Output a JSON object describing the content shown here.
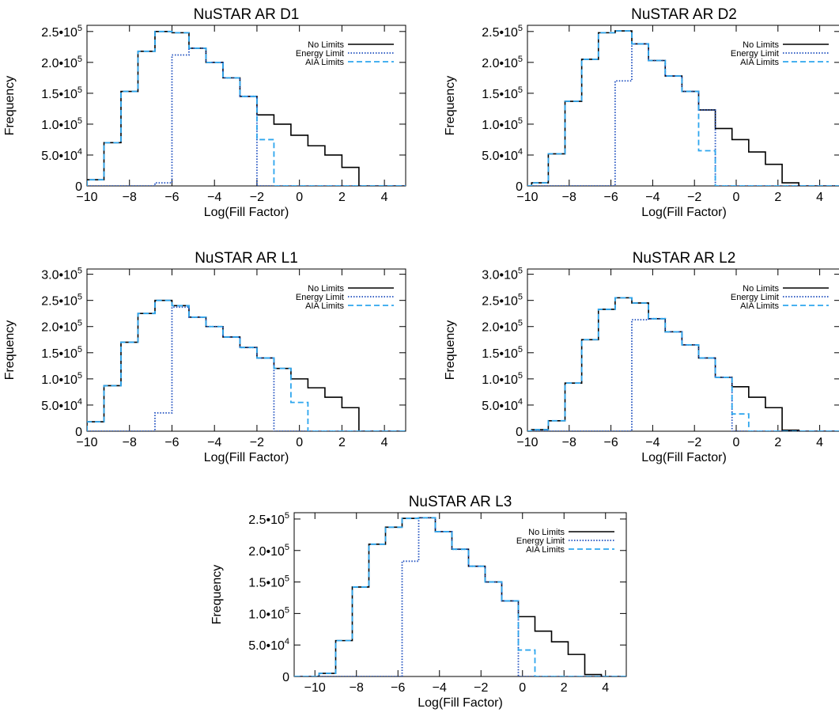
{
  "figure": {
    "legend_labels": [
      "No Limits",
      "Energy Limit",
      "AIA Limits"
    ]
  },
  "chart_data": [
    {
      "type": "histogram",
      "title": "NuSTAR AR D1",
      "xlabel": "Log(Fill Factor)",
      "ylabel": "Frequency",
      "xlim": [
        -10,
        5
      ],
      "ylim": [
        0,
        260000
      ],
      "xticks": [
        -10,
        -8,
        -6,
        -4,
        -2,
        0,
        2,
        4
      ],
      "yticks": [
        0,
        50000,
        100000,
        150000,
        200000,
        250000
      ],
      "ytick_labels": [
        {
          "m": "0",
          "e": ""
        },
        {
          "m": "5.0•10",
          "e": "4"
        },
        {
          "m": "1.0•10",
          "e": "5"
        },
        {
          "m": "1.5•10",
          "e": "5"
        },
        {
          "m": "2.0•10",
          "e": "5"
        },
        {
          "m": "2.5•10",
          "e": "5"
        }
      ],
      "legend_position": "top-right",
      "bin_edges": [
        -10,
        -9.2,
        -8.4,
        -7.6,
        -6.8,
        -6,
        -5.2,
        -4.4,
        -3.6,
        -2.8,
        -2,
        -1.2,
        -0.4,
        0.4,
        1.2,
        2,
        2.8,
        3.6,
        4.4
      ],
      "series": [
        {
          "name": "No Limits",
          "color": "#000000",
          "dash": "solid",
          "values": [
            10000,
            70000,
            153000,
            218000,
            250000,
            248000,
            223000,
            200000,
            175000,
            145000,
            115000,
            100000,
            82000,
            65000,
            50000,
            30000,
            0,
            0
          ]
        },
        {
          "name": "Energy Limit",
          "color": "#1f4fbf",
          "dash": "dotted",
          "values": [
            0,
            0,
            0,
            0,
            5000,
            212000,
            223000,
            200000,
            175000,
            145000,
            0,
            0,
            0,
            0,
            0,
            0,
            0,
            0
          ]
        },
        {
          "name": "AIA Limits",
          "color": "#2ea6ee",
          "dash": "dashed",
          "values": [
            10000,
            70000,
            153000,
            218000,
            250000,
            248000,
            223000,
            200000,
            175000,
            145000,
            75000,
            0,
            0,
            0,
            0,
            0,
            0,
            0
          ]
        }
      ]
    },
    {
      "type": "histogram",
      "title": "NuSTAR AR D2",
      "xlabel": "Log(Fill Factor)",
      "ylabel": "Frequency",
      "xlim": [
        -10,
        5
      ],
      "ylim": [
        0,
        260000
      ],
      "xticks": [
        -10,
        -8,
        -6,
        -4,
        -2,
        0,
        2,
        4
      ],
      "yticks": [
        0,
        50000,
        100000,
        150000,
        200000,
        250000
      ],
      "ytick_labels": [
        {
          "m": "0",
          "e": ""
        },
        {
          "m": "5.0•10",
          "e": "4"
        },
        {
          "m": "1.0•10",
          "e": "5"
        },
        {
          "m": "1.5•10",
          "e": "5"
        },
        {
          "m": "2.0•10",
          "e": "5"
        },
        {
          "m": "2.5•10",
          "e": "5"
        }
      ],
      "legend_position": "top-right",
      "bin_edges": [
        -9.8,
        -9,
        -8.2,
        -7.4,
        -6.6,
        -5.8,
        -5,
        -4.2,
        -3.4,
        -2.6,
        -1.8,
        -1,
        -0.2,
        0.6,
        1.4,
        2.2,
        3,
        3.8,
        4.6
      ],
      "series": [
        {
          "name": "No Limits",
          "color": "#000000",
          "dash": "solid",
          "values": [
            5000,
            52000,
            137000,
            205000,
            248000,
            251000,
            230000,
            203000,
            178000,
            153000,
            123000,
            93000,
            75000,
            55000,
            35000,
            5000,
            0,
            0
          ]
        },
        {
          "name": "Energy Limit",
          "color": "#1f4fbf",
          "dash": "dotted",
          "values": [
            0,
            0,
            0,
            0,
            0,
            170000,
            230000,
            203000,
            178000,
            153000,
            123000,
            0,
            0,
            0,
            0,
            0,
            0,
            0
          ]
        },
        {
          "name": "AIA Limits",
          "color": "#2ea6ee",
          "dash": "dashed",
          "values": [
            5000,
            52000,
            137000,
            205000,
            248000,
            251000,
            230000,
            203000,
            178000,
            153000,
            57000,
            0,
            0,
            0,
            0,
            0,
            0,
            0
          ]
        }
      ]
    },
    {
      "type": "histogram",
      "title": "NuSTAR AR L1",
      "xlabel": "Log(Fill Factor)",
      "ylabel": "Frequency",
      "xlim": [
        -10,
        5
      ],
      "ylim": [
        0,
        310000
      ],
      "xticks": [
        -10,
        -8,
        -6,
        -4,
        -2,
        0,
        2,
        4
      ],
      "yticks": [
        0,
        50000,
        100000,
        150000,
        200000,
        250000,
        300000
      ],
      "ytick_labels": [
        {
          "m": "0",
          "e": ""
        },
        {
          "m": "5.0•10",
          "e": "4"
        },
        {
          "m": "1.0•10",
          "e": "5"
        },
        {
          "m": "1.5•10",
          "e": "5"
        },
        {
          "m": "2.0•10",
          "e": "5"
        },
        {
          "m": "2.5•10",
          "e": "5"
        },
        {
          "m": "3.0•10",
          "e": "5"
        }
      ],
      "legend_position": "top-right",
      "bin_edges": [
        -10,
        -9.2,
        -8.4,
        -7.6,
        -6.8,
        -6,
        -5.2,
        -4.4,
        -3.6,
        -2.8,
        -2,
        -1.2,
        -0.4,
        0.4,
        1.2,
        2,
        2.8,
        3.6,
        4.4
      ],
      "series": [
        {
          "name": "No Limits",
          "color": "#000000",
          "dash": "solid",
          "values": [
            18000,
            87000,
            170000,
            225000,
            250000,
            240000,
            218000,
            200000,
            180000,
            160000,
            140000,
            120000,
            100000,
            83000,
            65000,
            45000,
            0,
            0
          ]
        },
        {
          "name": "Energy Limit",
          "color": "#1f4fbf",
          "dash": "dotted",
          "values": [
            0,
            0,
            0,
            0,
            35000,
            237000,
            218000,
            200000,
            180000,
            160000,
            140000,
            0,
            0,
            0,
            0,
            0,
            0,
            0
          ]
        },
        {
          "name": "AIA Limits",
          "color": "#2ea6ee",
          "dash": "dashed",
          "values": [
            18000,
            87000,
            170000,
            225000,
            250000,
            240000,
            218000,
            200000,
            180000,
            160000,
            140000,
            120000,
            55000,
            0,
            0,
            0,
            0,
            0
          ]
        }
      ]
    },
    {
      "type": "histogram",
      "title": "NuSTAR AR L2",
      "xlabel": "Log(Fill Factor)",
      "ylabel": "Frequency",
      "xlim": [
        -10,
        5
      ],
      "ylim": [
        0,
        310000
      ],
      "xticks": [
        -10,
        -8,
        -6,
        -4,
        -2,
        0,
        2,
        4
      ],
      "yticks": [
        0,
        50000,
        100000,
        150000,
        200000,
        250000,
        300000
      ],
      "ytick_labels": [
        {
          "m": "0",
          "e": ""
        },
        {
          "m": "5.0•10",
          "e": "4"
        },
        {
          "m": "1.0•10",
          "e": "5"
        },
        {
          "m": "1.5•10",
          "e": "5"
        },
        {
          "m": "2.0•10",
          "e": "5"
        },
        {
          "m": "2.5•10",
          "e": "5"
        },
        {
          "m": "3.0•10",
          "e": "5"
        }
      ],
      "legend_position": "top-right",
      "bin_edges": [
        -9.8,
        -9,
        -8.2,
        -7.4,
        -6.6,
        -5.8,
        -5,
        -4.2,
        -3.4,
        -2.6,
        -1.8,
        -1,
        -0.2,
        0.6,
        1.4,
        2.2,
        3,
        3.8,
        4.6
      ],
      "series": [
        {
          "name": "No Limits",
          "color": "#000000",
          "dash": "solid",
          "values": [
            3000,
            20000,
            92000,
            175000,
            233000,
            255000,
            245000,
            215000,
            190000,
            165000,
            140000,
            103000,
            85000,
            65000,
            45000,
            2000,
            0,
            0
          ]
        },
        {
          "name": "Energy Limit",
          "color": "#1f4fbf",
          "dash": "dotted",
          "values": [
            0,
            0,
            0,
            0,
            0,
            0,
            213000,
            215000,
            190000,
            165000,
            140000,
            103000,
            0,
            0,
            0,
            0,
            0,
            0
          ]
        },
        {
          "name": "AIA Limits",
          "color": "#2ea6ee",
          "dash": "dashed",
          "values": [
            3000,
            20000,
            92000,
            175000,
            233000,
            255000,
            245000,
            215000,
            190000,
            165000,
            140000,
            103000,
            33000,
            0,
            0,
            0,
            0,
            0
          ]
        }
      ]
    },
    {
      "type": "histogram",
      "title": "NuSTAR AR L3",
      "xlabel": "Log(Fill Factor)",
      "ylabel": "Frequency",
      "xlim": [
        -11,
        5
      ],
      "ylim": [
        0,
        260000
      ],
      "xticks": [
        -10,
        -8,
        -6,
        -4,
        -2,
        0,
        2,
        4
      ],
      "yticks": [
        0,
        50000,
        100000,
        150000,
        200000,
        250000
      ],
      "ytick_labels": [
        {
          "m": "0",
          "e": ""
        },
        {
          "m": "5.0•10",
          "e": "4"
        },
        {
          "m": "1.0•10",
          "e": "5"
        },
        {
          "m": "1.5•10",
          "e": "5"
        },
        {
          "m": "2.0•10",
          "e": "5"
        },
        {
          "m": "2.5•10",
          "e": "5"
        }
      ],
      "legend_position": "top-right",
      "bin_edges": [
        -9.8,
        -9,
        -8.2,
        -7.4,
        -6.6,
        -5.8,
        -5,
        -4.2,
        -3.4,
        -2.6,
        -1.8,
        -1,
        -0.2,
        0.6,
        1.4,
        2.2,
        3,
        3.8,
        4.6
      ],
      "series": [
        {
          "name": "No Limits",
          "color": "#000000",
          "dash": "solid",
          "values": [
            5000,
            57000,
            142000,
            210000,
            237000,
            251000,
            252000,
            230000,
            202000,
            175000,
            150000,
            120000,
            95000,
            72000,
            55000,
            35000,
            3000,
            0
          ]
        },
        {
          "name": "Energy Limit",
          "color": "#1f4fbf",
          "dash": "dotted",
          "values": [
            0,
            0,
            0,
            0,
            0,
            183000,
            252000,
            230000,
            202000,
            175000,
            150000,
            120000,
            0,
            0,
            0,
            0,
            0,
            0
          ]
        },
        {
          "name": "AIA Limits",
          "color": "#2ea6ee",
          "dash": "dashed",
          "values": [
            5000,
            57000,
            142000,
            210000,
            237000,
            251000,
            252000,
            230000,
            202000,
            175000,
            150000,
            120000,
            42000,
            0,
            0,
            0,
            0,
            0
          ]
        }
      ]
    }
  ]
}
